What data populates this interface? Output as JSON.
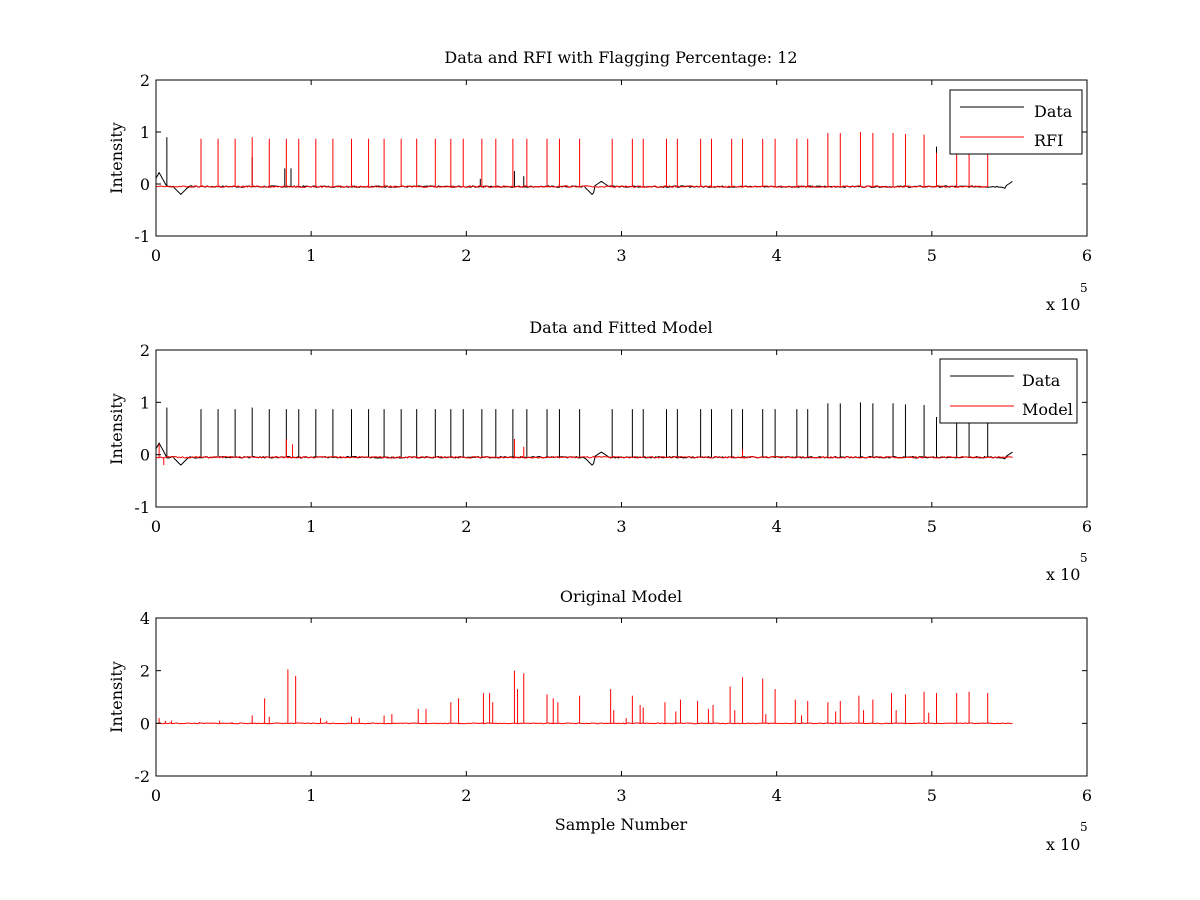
{
  "chart_data": [
    {
      "type": "line",
      "title": "Data and RFI with Flagging Percentage: 12",
      "xlabel": "",
      "ylabel": "Intensity",
      "xlim": [
        0,
        6
      ],
      "ylim": [
        -1,
        2
      ],
      "xticks": [
        "0",
        "1",
        "2",
        "3",
        "4",
        "5",
        "6"
      ],
      "yticks": [
        "-1",
        "0",
        "1",
        "2"
      ],
      "x_multiplier": "x 10",
      "x_exponent": "5",
      "legend": {
        "placement": "top-right",
        "entries": [
          {
            "name": "Data",
            "color": "#000000"
          },
          {
            "name": "RFI",
            "color": "#ff0000"
          }
        ]
      },
      "series": [
        {
          "name": "Data",
          "color": "#000000",
          "baseline": -0.05,
          "end": 5.52,
          "spikes": [
            {
              "x": 0.07,
              "y": 0.9
            },
            {
              "x": 0.62,
              "y": 0.52
            },
            {
              "x": 0.83,
              "y": 0.3
            },
            {
              "x": 0.87,
              "y": 0.3
            },
            {
              "x": 2.09,
              "y": 0.1
            },
            {
              "x": 2.31,
              "y": 0.25
            },
            {
              "x": 2.37,
              "y": 0.15
            },
            {
              "x": 5.03,
              "y": 0.72
            }
          ],
          "dips": [
            {
              "x": 0.02,
              "y": 0.22
            },
            {
              "x": 0.16,
              "y": -0.2
            },
            {
              "x": 2.81,
              "y": -0.2
            },
            {
              "x": 2.87,
              "y": 0.05
            },
            {
              "x": 5.49,
              "y": -0.1
            },
            {
              "x": 5.52,
              "y": 0.05
            }
          ]
        },
        {
          "name": "RFI",
          "color": "#ff0000",
          "baseline": -0.05,
          "end": 5.36,
          "spikes": [
            {
              "x": 0.29,
              "y": 0.87
            },
            {
              "x": 0.4,
              "y": 0.87
            },
            {
              "x": 0.51,
              "y": 0.87
            },
            {
              "x": 0.62,
              "y": 0.9
            },
            {
              "x": 0.73,
              "y": 0.87
            },
            {
              "x": 0.84,
              "y": 0.87
            },
            {
              "x": 0.92,
              "y": 0.87
            },
            {
              "x": 1.03,
              "y": 0.87
            },
            {
              "x": 1.14,
              "y": 0.87
            },
            {
              "x": 1.26,
              "y": 0.87
            },
            {
              "x": 1.37,
              "y": 0.87
            },
            {
              "x": 1.47,
              "y": 0.87
            },
            {
              "x": 1.58,
              "y": 0.87
            },
            {
              "x": 1.68,
              "y": 0.87
            },
            {
              "x": 1.8,
              "y": 0.87
            },
            {
              "x": 1.9,
              "y": 0.87
            },
            {
              "x": 1.98,
              "y": 0.87
            },
            {
              "x": 2.1,
              "y": 0.87
            },
            {
              "x": 2.19,
              "y": 0.87
            },
            {
              "x": 2.3,
              "y": 0.87
            },
            {
              "x": 2.39,
              "y": 0.87
            },
            {
              "x": 2.52,
              "y": 0.87
            },
            {
              "x": 2.6,
              "y": 0.87
            },
            {
              "x": 2.73,
              "y": 0.87
            },
            {
              "x": 2.94,
              "y": 0.87
            },
            {
              "x": 3.07,
              "y": 0.87
            },
            {
              "x": 3.14,
              "y": 0.87
            },
            {
              "x": 3.29,
              "y": 0.87
            },
            {
              "x": 3.36,
              "y": 0.87
            },
            {
              "x": 3.51,
              "y": 0.87
            },
            {
              "x": 3.58,
              "y": 0.87
            },
            {
              "x": 3.71,
              "y": 0.87
            },
            {
              "x": 3.78,
              "y": 0.87
            },
            {
              "x": 3.91,
              "y": 0.87
            },
            {
              "x": 3.99,
              "y": 0.87
            },
            {
              "x": 4.13,
              "y": 0.87
            },
            {
              "x": 4.2,
              "y": 0.87
            },
            {
              "x": 4.33,
              "y": 0.98
            },
            {
              "x": 4.41,
              "y": 0.98
            },
            {
              "x": 4.54,
              "y": 1.0
            },
            {
              "x": 4.62,
              "y": 0.98
            },
            {
              "x": 4.75,
              "y": 0.98
            },
            {
              "x": 4.83,
              "y": 0.96
            },
            {
              "x": 4.95,
              "y": 0.95
            },
            {
              "x": 5.03,
              "y": 0.6
            },
            {
              "x": 5.16,
              "y": 0.95
            },
            {
              "x": 5.24,
              "y": 0.95
            },
            {
              "x": 5.36,
              "y": 0.95
            }
          ]
        }
      ]
    },
    {
      "type": "line",
      "title": "Data and Fitted Model",
      "xlabel": "",
      "ylabel": "Intensity",
      "xlim": [
        0,
        6
      ],
      "ylim": [
        -1,
        2
      ],
      "xticks": [
        "0",
        "1",
        "2",
        "3",
        "4",
        "5",
        "6"
      ],
      "yticks": [
        "-1",
        "0",
        "1",
        "2"
      ],
      "x_multiplier": "x 10",
      "x_exponent": "5",
      "legend": {
        "placement": "top-right",
        "entries": [
          {
            "name": "Data",
            "color": "#000000"
          },
          {
            "name": "Model",
            "color": "#ff0000"
          }
        ]
      },
      "series": [
        {
          "name": "Data",
          "color": "#000000",
          "baseline": -0.05,
          "end": 5.52,
          "spikes": [
            {
              "x": 0.07,
              "y": 0.9
            },
            {
              "x": 0.29,
              "y": 0.87
            },
            {
              "x": 0.4,
              "y": 0.87
            },
            {
              "x": 0.51,
              "y": 0.87
            },
            {
              "x": 0.62,
              "y": 0.9
            },
            {
              "x": 0.73,
              "y": 0.87
            },
            {
              "x": 0.84,
              "y": 0.87
            },
            {
              "x": 0.92,
              "y": 0.87
            },
            {
              "x": 1.03,
              "y": 0.87
            },
            {
              "x": 1.14,
              "y": 0.87
            },
            {
              "x": 1.26,
              "y": 0.87
            },
            {
              "x": 1.37,
              "y": 0.87
            },
            {
              "x": 1.47,
              "y": 0.87
            },
            {
              "x": 1.58,
              "y": 0.87
            },
            {
              "x": 1.68,
              "y": 0.87
            },
            {
              "x": 1.8,
              "y": 0.87
            },
            {
              "x": 1.9,
              "y": 0.87
            },
            {
              "x": 1.98,
              "y": 0.87
            },
            {
              "x": 2.1,
              "y": 0.87
            },
            {
              "x": 2.19,
              "y": 0.87
            },
            {
              "x": 2.3,
              "y": 0.87
            },
            {
              "x": 2.39,
              "y": 0.87
            },
            {
              "x": 2.52,
              "y": 0.87
            },
            {
              "x": 2.6,
              "y": 0.87
            },
            {
              "x": 2.73,
              "y": 0.87
            },
            {
              "x": 2.94,
              "y": 0.87
            },
            {
              "x": 3.07,
              "y": 0.87
            },
            {
              "x": 3.14,
              "y": 0.87
            },
            {
              "x": 3.29,
              "y": 0.87
            },
            {
              "x": 3.36,
              "y": 0.87
            },
            {
              "x": 3.51,
              "y": 0.87
            },
            {
              "x": 3.58,
              "y": 0.87
            },
            {
              "x": 3.71,
              "y": 0.87
            },
            {
              "x": 3.78,
              "y": 0.87
            },
            {
              "x": 3.91,
              "y": 0.87
            },
            {
              "x": 3.99,
              "y": 0.87
            },
            {
              "x": 4.13,
              "y": 0.87
            },
            {
              "x": 4.2,
              "y": 0.87
            },
            {
              "x": 4.33,
              "y": 0.98
            },
            {
              "x": 4.41,
              "y": 0.98
            },
            {
              "x": 4.54,
              "y": 1.0
            },
            {
              "x": 4.62,
              "y": 0.98
            },
            {
              "x": 4.75,
              "y": 0.98
            },
            {
              "x": 4.83,
              "y": 0.96
            },
            {
              "x": 4.95,
              "y": 0.95
            },
            {
              "x": 5.03,
              "y": 0.72
            },
            {
              "x": 5.16,
              "y": 0.95
            },
            {
              "x": 5.24,
              "y": 0.95
            },
            {
              "x": 5.36,
              "y": 0.95
            }
          ],
          "dips": [
            {
              "x": 0.02,
              "y": 0.22
            },
            {
              "x": 0.16,
              "y": -0.2
            },
            {
              "x": 2.81,
              "y": -0.2
            },
            {
              "x": 2.87,
              "y": 0.05
            },
            {
              "x": 5.49,
              "y": -0.1
            },
            {
              "x": 5.52,
              "y": 0.05
            }
          ]
        },
        {
          "name": "Model",
          "color": "#ff0000",
          "baseline": -0.05,
          "end": 5.52,
          "spikes": [
            {
              "x": 0.02,
              "y": 0.2
            },
            {
              "x": 0.05,
              "y": -0.2
            },
            {
              "x": 0.84,
              "y": 0.3
            },
            {
              "x": 0.88,
              "y": 0.2
            },
            {
              "x": 2.31,
              "y": 0.3
            },
            {
              "x": 2.37,
              "y": 0.15
            },
            {
              "x": 3.78,
              "y": 0.1
            }
          ]
        }
      ]
    },
    {
      "type": "line",
      "title": "Original Model",
      "xlabel": "Sample Number",
      "ylabel": "Intensity",
      "xlim": [
        0,
        6
      ],
      "ylim": [
        -2,
        4
      ],
      "xticks": [
        "0",
        "1",
        "2",
        "3",
        "4",
        "5",
        "6"
      ],
      "yticks": [
        "-2",
        "0",
        "2",
        "4"
      ],
      "x_multiplier": "x 10",
      "x_exponent": "5",
      "series": [
        {
          "name": "Original Model",
          "color": "#ff0000",
          "baseline": 0,
          "end": 5.52,
          "spikes": [
            {
              "x": 0.02,
              "y": 0.2
            },
            {
              "x": 0.06,
              "y": 0.1
            },
            {
              "x": 0.1,
              "y": 0.1
            },
            {
              "x": 0.28,
              "y": 0.05
            },
            {
              "x": 0.41,
              "y": 0.1
            },
            {
              "x": 0.49,
              "y": 0.05
            },
            {
              "x": 0.62,
              "y": 0.3
            },
            {
              "x": 0.7,
              "y": 0.95
            },
            {
              "x": 0.73,
              "y": 0.25
            },
            {
              "x": 0.85,
              "y": 2.05
            },
            {
              "x": 0.9,
              "y": 1.8
            },
            {
              "x": 1.06,
              "y": 0.2
            },
            {
              "x": 1.1,
              "y": 0.1
            },
            {
              "x": 1.26,
              "y": 0.25
            },
            {
              "x": 1.31,
              "y": 0.2
            },
            {
              "x": 1.47,
              "y": 0.3
            },
            {
              "x": 1.52,
              "y": 0.35
            },
            {
              "x": 1.69,
              "y": 0.55
            },
            {
              "x": 1.74,
              "y": 0.55
            },
            {
              "x": 1.9,
              "y": 0.8
            },
            {
              "x": 1.95,
              "y": 0.95
            },
            {
              "x": 2.11,
              "y": 1.15
            },
            {
              "x": 2.15,
              "y": 1.15
            },
            {
              "x": 2.17,
              "y": 0.8
            },
            {
              "x": 2.31,
              "y": 2.0
            },
            {
              "x": 2.33,
              "y": 1.3
            },
            {
              "x": 2.37,
              "y": 1.9
            },
            {
              "x": 2.52,
              "y": 1.1
            },
            {
              "x": 2.56,
              "y": 0.95
            },
            {
              "x": 2.59,
              "y": 0.8
            },
            {
              "x": 2.73,
              "y": 1.05
            },
            {
              "x": 2.93,
              "y": 1.3
            },
            {
              "x": 2.95,
              "y": 0.5
            },
            {
              "x": 3.03,
              "y": 0.2
            },
            {
              "x": 3.07,
              "y": 1.05
            },
            {
              "x": 3.12,
              "y": 0.7
            },
            {
              "x": 3.14,
              "y": 0.6
            },
            {
              "x": 3.28,
              "y": 0.8
            },
            {
              "x": 3.35,
              "y": 0.45
            },
            {
              "x": 3.38,
              "y": 0.9
            },
            {
              "x": 3.49,
              "y": 0.85
            },
            {
              "x": 3.56,
              "y": 0.55
            },
            {
              "x": 3.59,
              "y": 0.7
            },
            {
              "x": 3.7,
              "y": 1.4
            },
            {
              "x": 3.73,
              "y": 0.5
            },
            {
              "x": 3.78,
              "y": 1.75
            },
            {
              "x": 3.91,
              "y": 1.7
            },
            {
              "x": 3.93,
              "y": 0.35
            },
            {
              "x": 3.99,
              "y": 1.3
            },
            {
              "x": 4.12,
              "y": 0.9
            },
            {
              "x": 4.16,
              "y": 0.3
            },
            {
              "x": 4.2,
              "y": 0.85
            },
            {
              "x": 4.33,
              "y": 0.8
            },
            {
              "x": 4.38,
              "y": 0.45
            },
            {
              "x": 4.41,
              "y": 0.85
            },
            {
              "x": 4.53,
              "y": 1.05
            },
            {
              "x": 4.56,
              "y": 0.5
            },
            {
              "x": 4.62,
              "y": 0.9
            },
            {
              "x": 4.74,
              "y": 1.15
            },
            {
              "x": 4.77,
              "y": 0.5
            },
            {
              "x": 4.83,
              "y": 1.1
            },
            {
              "x": 4.95,
              "y": 1.2
            },
            {
              "x": 4.98,
              "y": 0.4
            },
            {
              "x": 5.03,
              "y": 1.15
            },
            {
              "x": 5.16,
              "y": 1.15
            },
            {
              "x": 5.24,
              "y": 1.2
            },
            {
              "x": 5.36,
              "y": 1.15
            }
          ]
        }
      ]
    }
  ]
}
